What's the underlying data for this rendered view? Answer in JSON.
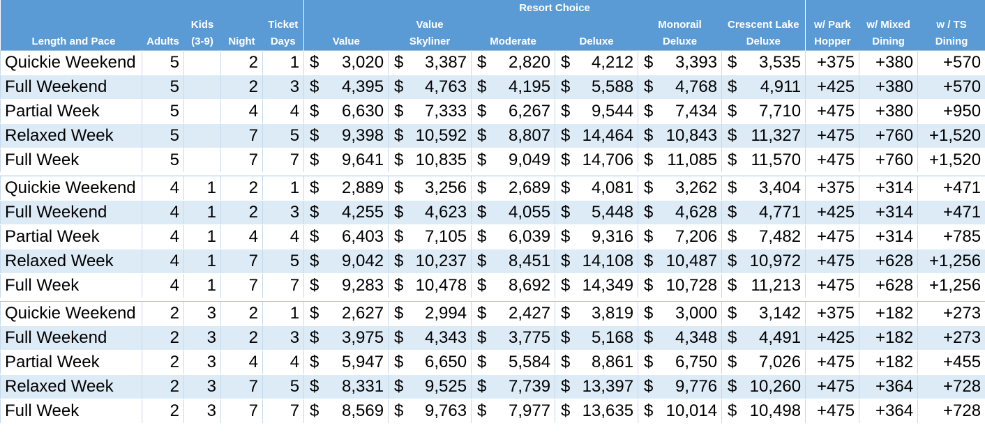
{
  "header": {
    "group_title": "Resort Choice",
    "columns": [
      {
        "line1": "",
        "line2": "Length and Pace"
      },
      {
        "line1": "",
        "line2": "Adults"
      },
      {
        "line1": "Kids",
        "line2": "(3-9)"
      },
      {
        "line1": "",
        "line2": "Night"
      },
      {
        "line1": "Ticket",
        "line2": "Days"
      },
      {
        "line1": "",
        "line2": "Value"
      },
      {
        "line1": "Value",
        "line2": "Skyliner"
      },
      {
        "line1": "",
        "line2": "Moderate"
      },
      {
        "line1": "",
        "line2": "Deluxe"
      },
      {
        "line1": "Monorail",
        "line2": "Deluxe"
      },
      {
        "line1": "Crescent Lake",
        "line2": "Deluxe"
      },
      {
        "line1": "w/ Park",
        "line2": "Hopper"
      },
      {
        "line1": "w/ Mixed",
        "line2": "Dining"
      },
      {
        "line1": "w / TS",
        "line2": "Dining"
      }
    ]
  },
  "currency_symbol": "$",
  "groups": [
    {
      "rows": [
        {
          "name": "Quickie Weekend",
          "adults": "5",
          "kids": "",
          "nights": "2",
          "days": "1",
          "value": "3,020",
          "skyliner": "3,387",
          "moderate": "2,820",
          "deluxe": "4,212",
          "monorail": "3,393",
          "crescent": "3,535",
          "hopper": "+375",
          "mixed": "+380",
          "ts": "+570"
        },
        {
          "name": "Full Weekend",
          "adults": "5",
          "kids": "",
          "nights": "2",
          "days": "3",
          "value": "4,395",
          "skyliner": "4,763",
          "moderate": "4,195",
          "deluxe": "5,588",
          "monorail": "4,768",
          "crescent": "4,911",
          "hopper": "+425",
          "mixed": "+380",
          "ts": "+570"
        },
        {
          "name": "Partial Week",
          "adults": "5",
          "kids": "",
          "nights": "4",
          "days": "4",
          "value": "6,630",
          "skyliner": "7,333",
          "moderate": "6,267",
          "deluxe": "9,544",
          "monorail": "7,434",
          "crescent": "7,710",
          "hopper": "+475",
          "mixed": "+380",
          "ts": "+950"
        },
        {
          "name": "Relaxed Week",
          "adults": "5",
          "kids": "",
          "nights": "7",
          "days": "5",
          "value": "9,398",
          "skyliner": "10,592",
          "moderate": "8,807",
          "deluxe": "14,464",
          "monorail": "10,843",
          "crescent": "11,327",
          "hopper": "+475",
          "mixed": "+760",
          "ts": "+1,520"
        },
        {
          "name": "Full Week",
          "adults": "5",
          "kids": "",
          "nights": "7",
          "days": "7",
          "value": "9,641",
          "skyliner": "10,835",
          "moderate": "9,049",
          "deluxe": "14,706",
          "monorail": "11,085",
          "crescent": "11,570",
          "hopper": "+475",
          "mixed": "+760",
          "ts": "+1,520"
        }
      ]
    },
    {
      "rows": [
        {
          "name": "Quickie Weekend",
          "adults": "4",
          "kids": "1",
          "nights": "2",
          "days": "1",
          "value": "2,889",
          "skyliner": "3,256",
          "moderate": "2,689",
          "deluxe": "4,081",
          "monorail": "3,262",
          "crescent": "3,404",
          "hopper": "+375",
          "mixed": "+314",
          "ts": "+471"
        },
        {
          "name": "Full Weekend",
          "adults": "4",
          "kids": "1",
          "nights": "2",
          "days": "3",
          "value": "4,255",
          "skyliner": "4,623",
          "moderate": "4,055",
          "deluxe": "5,448",
          "monorail": "4,628",
          "crescent": "4,771",
          "hopper": "+425",
          "mixed": "+314",
          "ts": "+471"
        },
        {
          "name": "Partial Week",
          "adults": "4",
          "kids": "1",
          "nights": "4",
          "days": "4",
          "value": "6,403",
          "skyliner": "7,105",
          "moderate": "6,039",
          "deluxe": "9,316",
          "monorail": "7,206",
          "crescent": "7,482",
          "hopper": "+475",
          "mixed": "+314",
          "ts": "+785"
        },
        {
          "name": "Relaxed Week",
          "adults": "4",
          "kids": "1",
          "nights": "7",
          "days": "5",
          "value": "9,042",
          "skyliner": "10,237",
          "moderate": "8,451",
          "deluxe": "14,108",
          "monorail": "10,487",
          "crescent": "10,972",
          "hopper": "+475",
          "mixed": "+628",
          "ts": "+1,256"
        },
        {
          "name": "Full Week",
          "adults": "4",
          "kids": "1",
          "nights": "7",
          "days": "7",
          "value": "9,283",
          "skyliner": "10,478",
          "moderate": "8,692",
          "deluxe": "14,349",
          "monorail": "10,728",
          "crescent": "11,213",
          "hopper": "+475",
          "mixed": "+628",
          "ts": "+1,256"
        }
      ]
    },
    {
      "rows": [
        {
          "name": "Quickie Weekend",
          "adults": "2",
          "kids": "3",
          "nights": "2",
          "days": "1",
          "value": "2,627",
          "skyliner": "2,994",
          "moderate": "2,427",
          "deluxe": "3,819",
          "monorail": "3,000",
          "crescent": "3,142",
          "hopper": "+375",
          "mixed": "+182",
          "ts": "+273"
        },
        {
          "name": "Full Weekend",
          "adults": "2",
          "kids": "3",
          "nights": "2",
          "days": "3",
          "value": "3,975",
          "skyliner": "4,343",
          "moderate": "3,775",
          "deluxe": "5,168",
          "monorail": "4,348",
          "crescent": "4,491",
          "hopper": "+425",
          "mixed": "+182",
          "ts": "+273"
        },
        {
          "name": "Partial Week",
          "adults": "2",
          "kids": "3",
          "nights": "4",
          "days": "4",
          "value": "5,947",
          "skyliner": "6,650",
          "moderate": "5,584",
          "deluxe": "8,861",
          "monorail": "6,750",
          "crescent": "7,026",
          "hopper": "+475",
          "mixed": "+182",
          "ts": "+455"
        },
        {
          "name": "Relaxed Week",
          "adults": "2",
          "kids": "3",
          "nights": "7",
          "days": "5",
          "value": "8,331",
          "skyliner": "9,525",
          "moderate": "7,739",
          "deluxe": "13,397",
          "monorail": "9,776",
          "crescent": "10,260",
          "hopper": "+475",
          "mixed": "+364",
          "ts": "+728"
        },
        {
          "name": "Full Week",
          "adults": "2",
          "kids": "3",
          "nights": "7",
          "days": "7",
          "value": "8,569",
          "skyliner": "9,763",
          "moderate": "7,977",
          "deluxe": "13,635",
          "monorail": "10,014",
          "crescent": "10,498",
          "hopper": "+475",
          "mixed": "+364",
          "ts": "+728"
        }
      ]
    }
  ]
}
